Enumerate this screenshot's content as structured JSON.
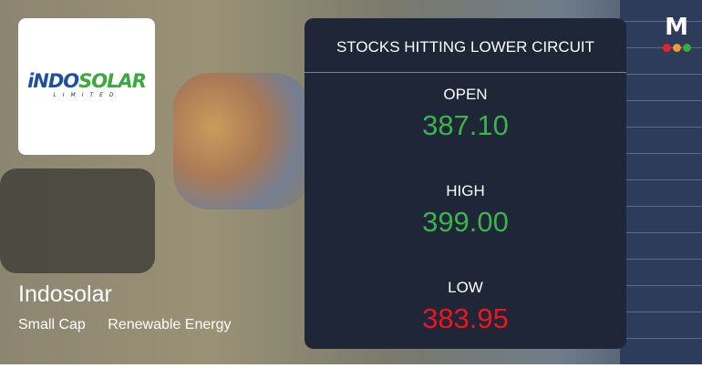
{
  "company": {
    "name": "Indosolar",
    "logo_text_blue": "iNDO",
    "logo_text_green": "SOLAR",
    "logo_subtext": "LIMITED",
    "tags": [
      "Small Cap",
      "Renewable Energy"
    ]
  },
  "card": {
    "title": "STOCKS HITTING LOWER CIRCUIT",
    "open": {
      "label": "OPEN",
      "value": "387.10",
      "color": "#3cb44b"
    },
    "high": {
      "label": "HIGH",
      "value": "399.00",
      "color": "#3cb44b"
    },
    "low": {
      "label": "LOW",
      "value": "383.95",
      "color": "#f0141e"
    }
  },
  "brand": {
    "letter": "M",
    "dot_colors": [
      "#e8242a",
      "#f29a2e",
      "#3aaa3a"
    ]
  }
}
